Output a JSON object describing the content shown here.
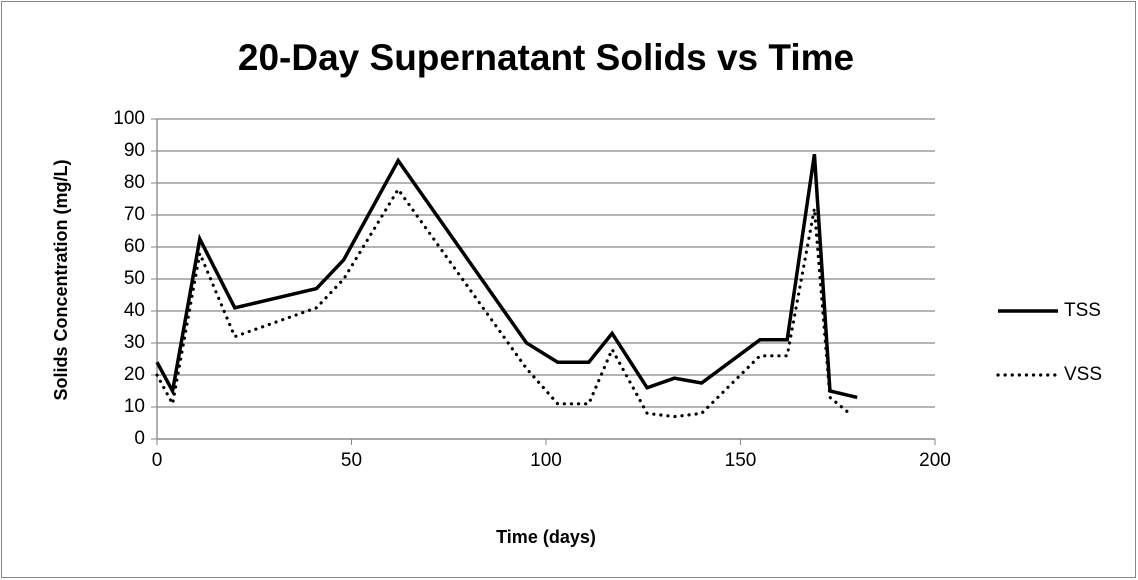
{
  "chart_data": {
    "type": "line",
    "title": "20-Day Supernatant Solids vs Time",
    "xlabel": "Time (days)",
    "ylabel": "Solids Concentration (mg/L)",
    "series": [
      {
        "name": "TSS",
        "color": "#000000",
        "style": "solid",
        "x": [
          0,
          4,
          11,
          20,
          41,
          48,
          62,
          95,
          103,
          111,
          117,
          126,
          133,
          140,
          155,
          162,
          169,
          173,
          180
        ],
        "values": [
          24,
          15,
          62.5,
          41,
          47,
          56,
          87,
          30,
          24,
          24,
          33,
          16,
          19,
          17.5,
          31,
          31,
          89,
          15,
          13
        ]
      },
      {
        "name": "VSS",
        "color": "#000000",
        "style": "dotted",
        "x": [
          0,
          4,
          11,
          20,
          41,
          48,
          62,
          95,
          103,
          111,
          117,
          126,
          133,
          140,
          155,
          162,
          169,
          173,
          178
        ],
        "values": [
          20,
          11,
          58,
          32,
          41,
          50,
          78,
          22,
          11,
          11,
          28,
          8,
          7,
          8,
          26,
          26,
          72,
          13,
          8
        ]
      }
    ],
    "xlim": [
      0,
      200
    ],
    "xticks": [
      0,
      50,
      100,
      150,
      200
    ],
    "ylim": [
      0,
      100
    ],
    "yticks": [
      0,
      10,
      20,
      30,
      40,
      50,
      60,
      70,
      80,
      90,
      100
    ],
    "grid": true,
    "legend": "right"
  }
}
